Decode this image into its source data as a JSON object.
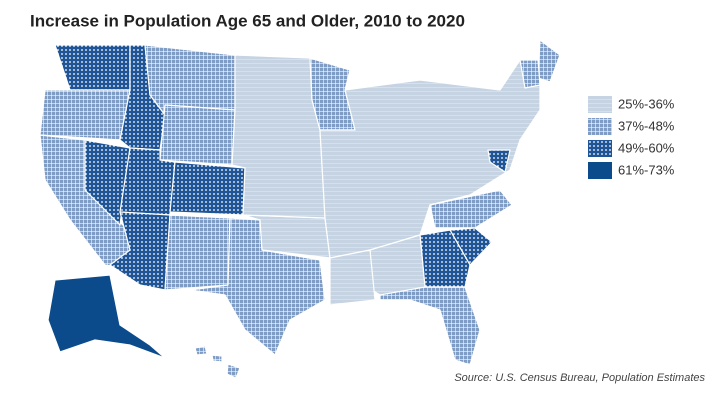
{
  "title": "Increase in Population Age 65 and Older, 2010 to 2020",
  "legend": [
    {
      "label": "25%-36%",
      "color": "#c5d3e2"
    },
    {
      "label": "37%-48%",
      "color": "#7f9dc4"
    },
    {
      "label": "49%-60%",
      "color": "#1f5597"
    },
    {
      "label": "61%-73%",
      "color": "#0b4a8b"
    }
  ],
  "source": "Source: U.S. Census Bureau, Population Estimates"
}
